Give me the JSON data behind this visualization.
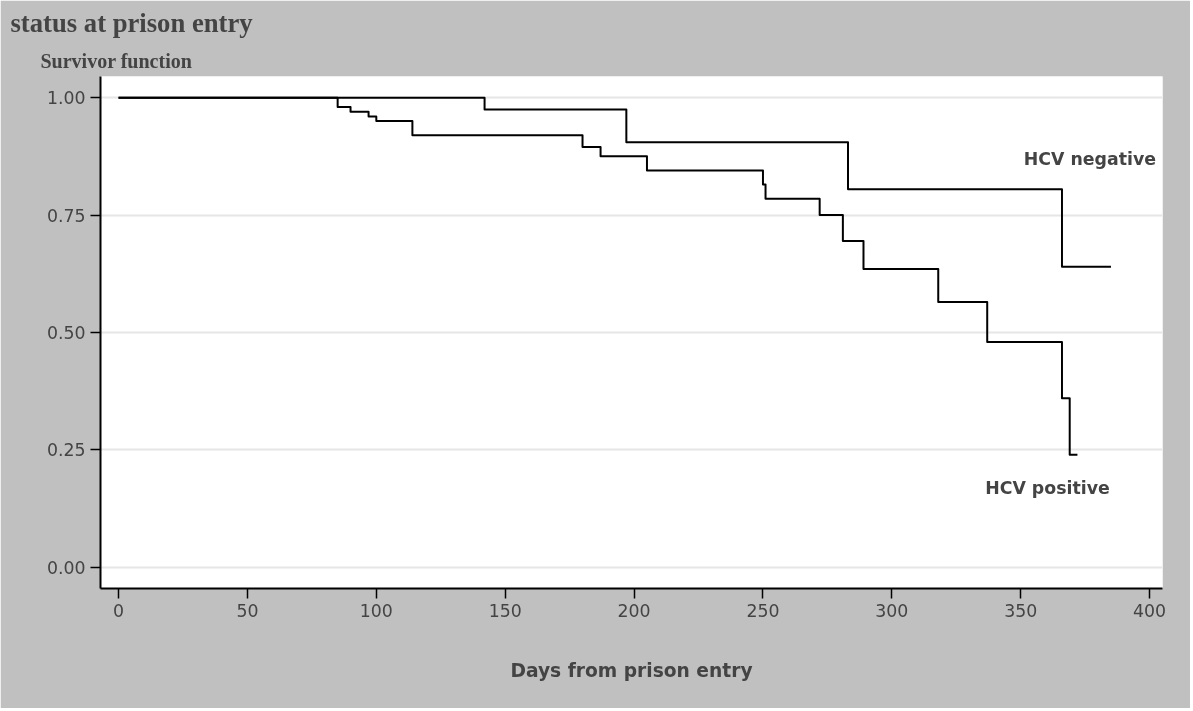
{
  "chart_data": {
    "type": "step",
    "title": "status at prison entry",
    "xlabel": "Days from prison entry",
    "ylabel": "Survivor function",
    "series": [
      {
        "name": "HCV negative",
        "color": "#000000",
        "x": [
          0,
          142,
          197,
          283,
          366,
          385
        ],
        "values": [
          1.0,
          0.975,
          0.905,
          0.805,
          0.64,
          0.64
        ]
      },
      {
        "name": "HCV positive",
        "color": "#000000",
        "x": [
          0,
          85,
          90,
          97,
          100,
          114,
          180,
          187,
          205,
          250,
          251,
          272,
          281,
          289,
          318,
          337,
          366,
          369,
          372
        ],
        "values": [
          1.0,
          0.98,
          0.97,
          0.96,
          0.95,
          0.92,
          0.895,
          0.875,
          0.845,
          0.815,
          0.785,
          0.75,
          0.695,
          0.635,
          0.565,
          0.48,
          0.36,
          0.24,
          0.24
        ]
      }
    ],
    "xlim": [
      -7,
      405
    ],
    "ylim": [
      -0.045,
      1.045
    ],
    "xticks": [
      0,
      50,
      100,
      150,
      200,
      250,
      300,
      350,
      400
    ],
    "yticks": [
      {
        "value": 0,
        "label": "0.00"
      },
      {
        "value": 0.25,
        "label": "0.25"
      },
      {
        "value": 0.5,
        "label": "0.50"
      },
      {
        "value": 0.75,
        "label": "0.75"
      },
      {
        "value": 1,
        "label": "1.00"
      }
    ],
    "grid": "y",
    "legend": false,
    "line_style": "solid"
  }
}
